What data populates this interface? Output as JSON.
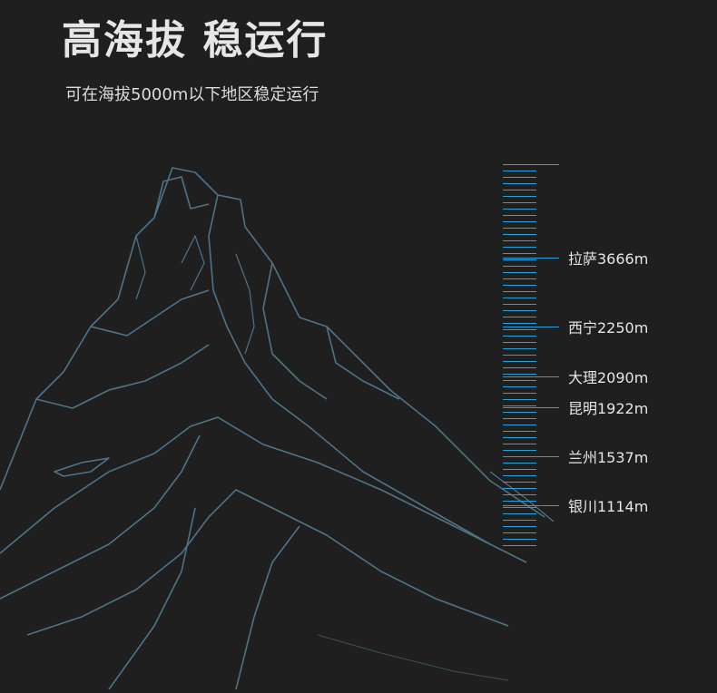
{
  "header": {
    "title": "高海拔 稳运行",
    "subtitle": "可在海拔5000m以下地区稳定运行"
  },
  "colors": {
    "background": "#1f1f1f",
    "scale": "#2a9fe0",
    "mountain": "#4f7388"
  },
  "cities": [
    {
      "label": "拉萨3666m",
      "name": "拉萨",
      "altitude_m": 3666
    },
    {
      "label": "西宁2250m",
      "name": "西宁",
      "altitude_m": 2250
    },
    {
      "label": "大理2090m",
      "name": "大理",
      "altitude_m": 2090
    },
    {
      "label": "昆明1922m",
      "name": "昆明",
      "altitude_m": 1922
    },
    {
      "label": "兰州1537m",
      "name": "兰州",
      "altitude_m": 1537
    },
    {
      "label": "银川1114m",
      "name": "银川",
      "altitude_m": 1114
    }
  ]
}
